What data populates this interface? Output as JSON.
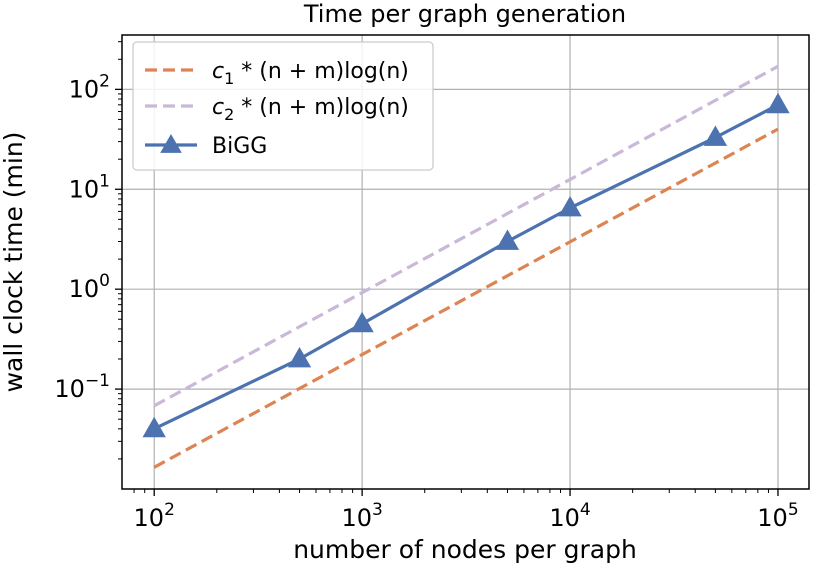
{
  "chart_data": {
    "type": "line",
    "title": "Time per graph generation",
    "xlabel": "number of nodes per graph",
    "ylabel": "wall clock time (min)",
    "xscale": "log",
    "yscale": "log",
    "xlim": [
      70,
      141000
    ],
    "ylim": [
      0.01,
      350
    ],
    "grid": true,
    "legend_position": "top-left",
    "x_ticks": [
      {
        "value": 100,
        "base": "10",
        "exp": "2"
      },
      {
        "value": 1000,
        "base": "10",
        "exp": "3"
      },
      {
        "value": 10000,
        "base": "10",
        "exp": "4"
      },
      {
        "value": 100000,
        "base": "10",
        "exp": "5"
      }
    ],
    "y_ticks": [
      {
        "value": 0.1,
        "base": "10",
        "exp": "−1"
      },
      {
        "value": 1,
        "base": "10",
        "exp": "0"
      },
      {
        "value": 10,
        "base": "10",
        "exp": "1"
      },
      {
        "value": 100,
        "base": "10",
        "exp": "2"
      }
    ],
    "series": [
      {
        "name": "c1 * (n + m)log(n)",
        "label_parts": {
          "c": "c",
          "sub": "1",
          "rest": " * (n + m)log(n)"
        },
        "color": "#dd8452",
        "style": "dashed",
        "marker": "none",
        "x": [
          100,
          100000
        ],
        "y": [
          0.0165,
          40
        ]
      },
      {
        "name": "c2 * (n + m)log(n)",
        "label_parts": {
          "c": "c",
          "sub": "2",
          "rest": " * (n + m)log(n)"
        },
        "color": "#c9b8da",
        "style": "dashed",
        "marker": "none",
        "x": [
          100,
          100000
        ],
        "y": [
          0.068,
          170
        ]
      },
      {
        "name": "BiGG",
        "color": "#4c72b0",
        "style": "solid",
        "marker": "triangle-up",
        "x": [
          100,
          500,
          1000,
          5000,
          10000,
          50000,
          100000
        ],
        "y": [
          0.04,
          0.2,
          0.45,
          3.0,
          6.5,
          33,
          70
        ]
      }
    ]
  }
}
